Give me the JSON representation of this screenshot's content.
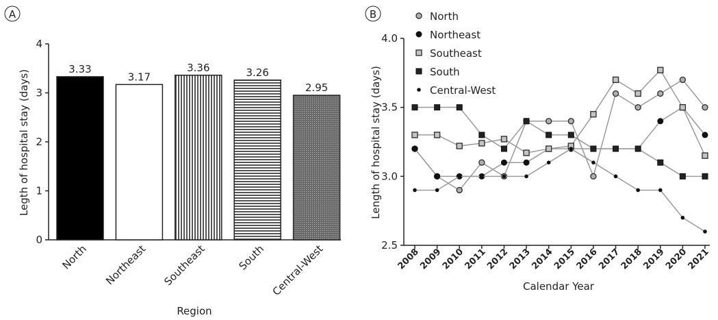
{
  "chart_data": [
    {
      "panel": "A",
      "type": "bar",
      "categories": [
        "North",
        "Northeast",
        "Southeast",
        "South",
        "Central-West"
      ],
      "values": [
        3.33,
        3.17,
        3.36,
        3.26,
        2.95
      ],
      "value_labels": [
        "3.33",
        "3.17",
        "3.36",
        "3.26",
        "2.95"
      ],
      "fills": [
        "solid-black",
        "white",
        "vertical-stripes",
        "horizontal-stripes",
        "crosshatch-dark"
      ],
      "title": "",
      "xlabel": "Region",
      "ylabel": "Legth of hospital stay (days)",
      "ylim": [
        0,
        4
      ],
      "yticks": [
        "0",
        "1",
        "2",
        "3",
        "4"
      ],
      "grid": false
    },
    {
      "panel": "B",
      "type": "line",
      "x": [
        "2008",
        "2009",
        "2010",
        "2011",
        "2012",
        "2013",
        "2014",
        "2015",
        "2016",
        "2017",
        "2018",
        "2019",
        "2020",
        "2021"
      ],
      "series": [
        {
          "name": "North",
          "marker": "circle-gray",
          "values": [
            3.2,
            3.0,
            2.9,
            3.1,
            3.0,
            3.4,
            3.4,
            3.4,
            3.0,
            3.6,
            3.5,
            3.6,
            3.7,
            3.5
          ]
        },
        {
          "name": "Northeast",
          "marker": "circle-black",
          "values": [
            3.2,
            3.0,
            3.0,
            3.0,
            3.1,
            3.1,
            3.2,
            3.2,
            3.2,
            3.2,
            3.2,
            3.4,
            3.5,
            3.3
          ]
        },
        {
          "name": "Southeast",
          "marker": "square-gray",
          "values": [
            3.3,
            3.3,
            3.22,
            3.24,
            3.27,
            3.17,
            3.2,
            3.22,
            3.45,
            3.7,
            3.6,
            3.77,
            3.5,
            3.15
          ]
        },
        {
          "name": "South",
          "marker": "square-black",
          "values": [
            3.5,
            3.5,
            3.5,
            3.3,
            3.2,
            3.4,
            3.3,
            3.3,
            3.2,
            3.2,
            3.2,
            3.1,
            3.0,
            3.0
          ]
        },
        {
          "name": "Central-West",
          "marker": "dot-black",
          "values": [
            2.9,
            2.9,
            3.0,
            3.0,
            3.0,
            3.0,
            3.1,
            3.2,
            3.1,
            3.0,
            2.9,
            2.9,
            2.7,
            2.6
          ]
        }
      ],
      "title": "",
      "xlabel": "Calendar Year",
      "ylabel": "Length of hospital stay (days)",
      "ylim": [
        2.5,
        4.0
      ],
      "yticks": [
        "2.5",
        "3.0",
        "3.5",
        "4.0"
      ],
      "legend_position": "top-left",
      "grid": false
    }
  ]
}
